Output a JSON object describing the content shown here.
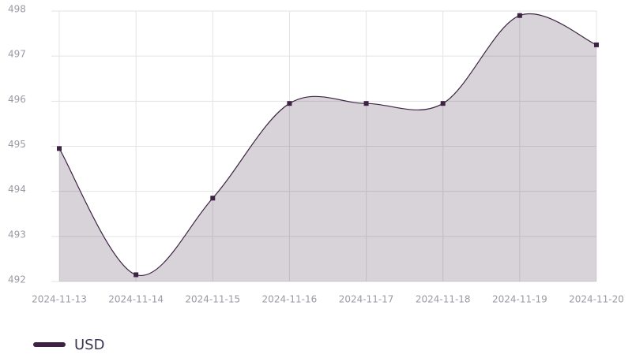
{
  "chart_data": {
    "type": "area",
    "categories": [
      "2024-11-13",
      "2024-11-14",
      "2024-11-15",
      "2024-11-16",
      "2024-11-17",
      "2024-11-18",
      "2024-11-19",
      "2024-11-20"
    ],
    "series": [
      {
        "name": "USD",
        "color": "#3d2342",
        "values": [
          494.95,
          492.15,
          493.85,
          495.95,
          495.95,
          495.95,
          497.9,
          497.25
        ]
      }
    ],
    "ylim": [
      492,
      498
    ],
    "yticks": [
      492,
      493,
      494,
      495,
      496,
      497,
      498
    ],
    "grid": true,
    "legend": "bottom-left"
  }
}
